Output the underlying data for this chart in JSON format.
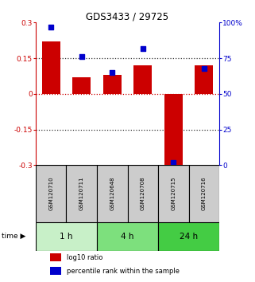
{
  "title": "GDS3433 / 29725",
  "samples": [
    "GSM120710",
    "GSM120711",
    "GSM120648",
    "GSM120708",
    "GSM120715",
    "GSM120716"
  ],
  "log10_ratio": [
    0.22,
    0.07,
    0.08,
    0.12,
    -0.305,
    0.12
  ],
  "percentile_rank": [
    97,
    76,
    65,
    82,
    2,
    68
  ],
  "time_groups": [
    {
      "label": "1 h",
      "start": 0,
      "end": 2,
      "color": "#c8f0c8"
    },
    {
      "label": "4 h",
      "start": 2,
      "end": 4,
      "color": "#7de07d"
    },
    {
      "label": "24 h",
      "start": 4,
      "end": 6,
      "color": "#44cc44"
    }
  ],
  "bar_color": "#cc0000",
  "square_color": "#0000cc",
  "ylim_left": [
    -0.3,
    0.3
  ],
  "ylim_right": [
    0,
    100
  ],
  "yticks_left": [
    -0.3,
    -0.15,
    0,
    0.15,
    0.3
  ],
  "yticks_right": [
    0,
    25,
    50,
    75,
    100
  ],
  "ytick_labels_right": [
    "0",
    "25",
    "50",
    "75",
    "100%"
  ],
  "hlines": [
    0.15,
    -0.15
  ],
  "hline_zero_color": "#cc0000",
  "hline_color": "#333333",
  "background_color": "#ffffff",
  "sample_box_color": "#cccccc",
  "bar_width": 0.6,
  "square_size": 18,
  "legend_square_size": 8
}
